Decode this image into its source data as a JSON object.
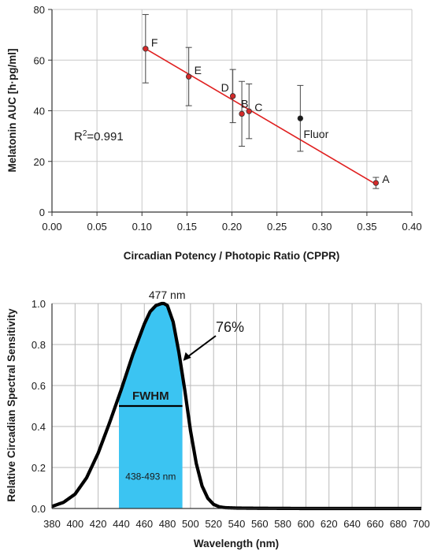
{
  "chart_data": [
    {
      "type": "scatter",
      "xlabel": "Circadian Potency / Photopic Ratio (CPPR)",
      "ylabel": "Melatonin AUC [h·pg/ml]",
      "xlim": [
        0.0,
        0.4
      ],
      "ylim": [
        0,
        80
      ],
      "x_ticks": [
        "0.00",
        "0.05",
        "0.10",
        "0.15",
        "0.20",
        "0.25",
        "0.30",
        "0.35",
        "0.40"
      ],
      "y_ticks": [
        "0",
        "20",
        "40",
        "60",
        "80"
      ],
      "grid": true,
      "points": [
        {
          "label": "F",
          "x": 0.104,
          "y": 64.5,
          "err": 13.5,
          "color": "#d42a2a"
        },
        {
          "label": "E",
          "x": 0.152,
          "y": 53.5,
          "err": 11.5,
          "color": "#d42a2a"
        },
        {
          "label": "D",
          "x": 0.201,
          "y": 45.8,
          "err": 10.5,
          "color": "#d42a2a"
        },
        {
          "label": "B",
          "x": 0.211,
          "y": 38.8,
          "err": 12.8,
          "color": "#d42a2a"
        },
        {
          "label": "C",
          "x": 0.219,
          "y": 39.8,
          "err": 10.8,
          "color": "#d42a2a"
        },
        {
          "label": "Fluor",
          "x": 0.276,
          "y": 37.0,
          "err": 13.0,
          "color": "#1a1a1a"
        },
        {
          "label": "A",
          "x": 0.36,
          "y": 11.5,
          "err": 2.2,
          "color": "#d42a2a"
        }
      ],
      "fit_line": {
        "x": [
          0.104,
          0.36
        ],
        "y": [
          64.5,
          11.0
        ],
        "color": "#e02020"
      },
      "annotation": {
        "r2_prefix": "R",
        "r2_sup": "2",
        "r2_suffix": "=0.991"
      }
    },
    {
      "type": "area",
      "xlabel": "Wavelength (nm)",
      "ylabel": "Relative Circadian Spectral Sensitivity",
      "xlim": [
        380,
        700
      ],
      "ylim": [
        0,
        1.0
      ],
      "x_ticks": [
        "380",
        "400",
        "420",
        "440",
        "460",
        "480",
        "500",
        "520",
        "540",
        "560",
        "580",
        "600",
        "620",
        "640",
        "660",
        "680",
        "700"
      ],
      "y_ticks": [
        "0.0",
        "0.2",
        "0.4",
        "0.6",
        "0.8",
        "1.0"
      ],
      "grid": true,
      "x": [
        380,
        390,
        400,
        410,
        420,
        430,
        440,
        450,
        460,
        465,
        470,
        475,
        477,
        480,
        485,
        490,
        495,
        500,
        505,
        510,
        515,
        520,
        525,
        530,
        540,
        560,
        600,
        650,
        700
      ],
      "y": [
        0.01,
        0.03,
        0.07,
        0.15,
        0.27,
        0.42,
        0.58,
        0.75,
        0.9,
        0.96,
        0.99,
        1.0,
        1.0,
        0.99,
        0.91,
        0.76,
        0.58,
        0.38,
        0.22,
        0.11,
        0.05,
        0.02,
        0.008,
        0.004,
        0.002,
        0.001,
        0.0,
        0.0,
        0.0
      ],
      "fill_range": [
        438,
        493
      ],
      "fill_color": "#3bc4f2",
      "fwhm_level": 0.5,
      "labels": {
        "peak": "477 nm",
        "fwhm": "FWHM",
        "range": "438-493 nm",
        "percent": "76%"
      }
    }
  ]
}
